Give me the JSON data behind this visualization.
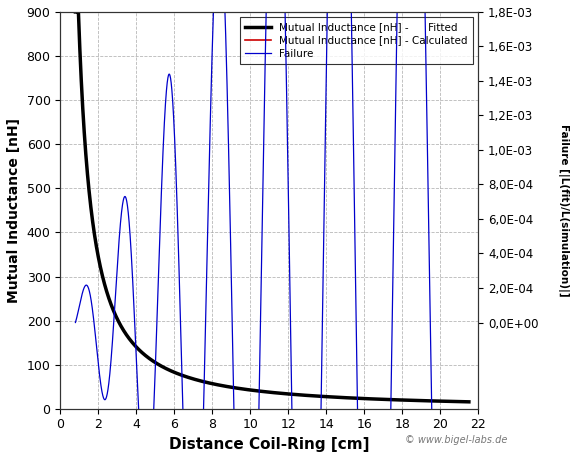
{
  "xlabel": "Distance Coil-Ring [cm]",
  "ylabel_left": "Mutual Inductance [nH]",
  "ylabel_right": "Failure [|L(fit)/L(simulation)|]",
  "xlim": [
    0,
    22
  ],
  "ylim_left": [
    0,
    900
  ],
  "ylim_right": [
    0.0,
    0.0018
  ],
  "yticks_left": [
    0,
    100,
    200,
    300,
    400,
    500,
    600,
    700,
    800,
    900
  ],
  "yticks_right": [
    0.0,
    0.0002,
    0.0004,
    0.0006,
    0.0008,
    0.001,
    0.0012,
    0.0014,
    0.0016,
    0.0018
  ],
  "ytick_labels_right": [
    "0,0E+00",
    "2,0E-04",
    "4,0E-04",
    "6,0E-04",
    "8,0E-04",
    "1,0E-03",
    "1,2E-03",
    "1,4E-03",
    "1,6E-03",
    "1,8E-03"
  ],
  "xticks": [
    0,
    2,
    4,
    6,
    8,
    10,
    12,
    14,
    16,
    18,
    20,
    22
  ],
  "watermark": "© www.bigel-labs.de",
  "legend_black": "Mutual Inductance [nH] -      Fitted",
  "legend_red": "Mutual Inductance [nH] - Calculated",
  "legend_blue": "Failure",
  "background_color": "#ffffff",
  "grid_color": "#999999"
}
